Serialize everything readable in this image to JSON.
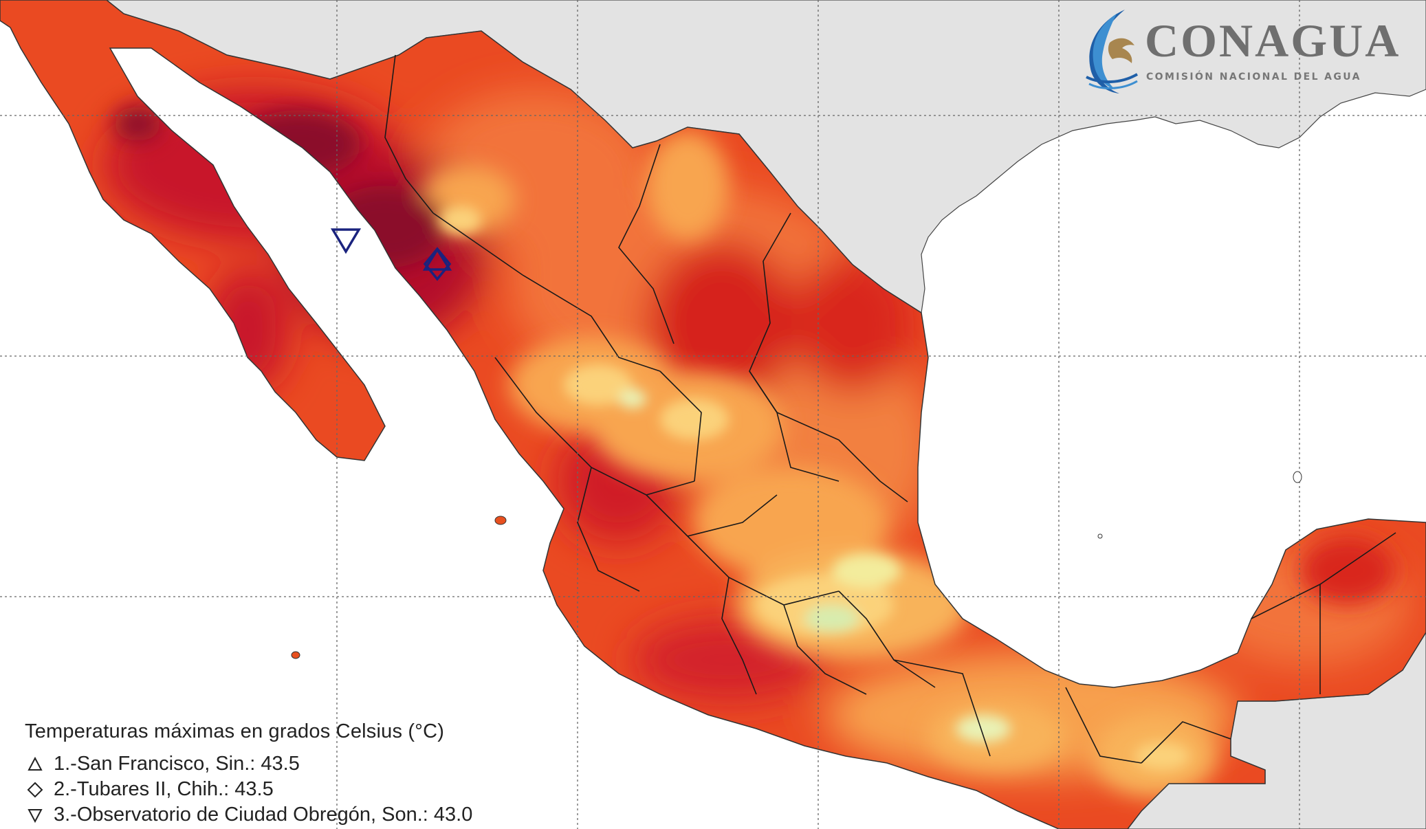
{
  "logo": {
    "name": "CONAGUA",
    "subtitle": "COMISIÓN NACIONAL DEL AGUA"
  },
  "legend": {
    "title": "Temperaturas máximas en grados Celsius (°C)",
    "stations": [
      {
        "symbol": "triangle-up-icon",
        "label": "1.-San Francisco, Sin.: 43.5",
        "value": 43.5
      },
      {
        "symbol": "diamond-icon",
        "label": "2.-Tubares II, Chih.: 43.5",
        "value": 43.5
      },
      {
        "symbol": "triangle-down-icon",
        "label": "3.-Observatorio de Ciudad Obregón, Son.: 43.0",
        "value": 43.0
      }
    ]
  },
  "colors": {
    "ocean": "#ffffff",
    "foreign_land": "#e3e3e3",
    "hottest": "#8b0a2a",
    "very_hot": "#c8162b",
    "hot": "#e8381f",
    "warm": "#f2733a",
    "mild": "#f8a550",
    "cool": "#fbd27a",
    "coolest": "#e9f2b5",
    "marker": "#1a237e"
  }
}
